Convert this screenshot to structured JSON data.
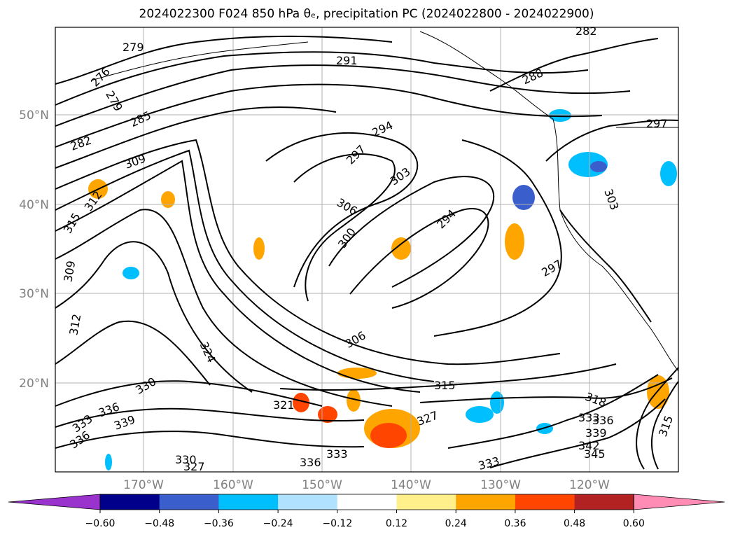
{
  "figure": {
    "title": "2024022300 F024 850 hPa θₑ, precipitation PC (2024022800 - 2024022900)"
  },
  "map": {
    "lat_labels": [
      "50°N",
      "40°N",
      "30°N",
      "20°N"
    ],
    "lon_labels": [
      "170°W",
      "160°W",
      "150°W",
      "140°W",
      "130°W",
      "120°W"
    ],
    "gridlines": true,
    "extent": {
      "lon": [
        -180,
        -110
      ],
      "lat": [
        10,
        60
      ]
    },
    "contour_labels": [
      "279",
      "276",
      "279",
      "285",
      "282",
      "309",
      "312",
      "315",
      "309",
      "312",
      "291",
      "288",
      "282",
      "297",
      "294",
      "297",
      "303",
      "306",
      "300",
      "294",
      "297",
      "303",
      "306",
      "324",
      "330",
      "336",
      "333",
      "336",
      "339",
      "315",
      "321",
      "327",
      "333",
      "336",
      "330",
      "327",
      "333",
      "318",
      "333",
      "336",
      "339",
      "342",
      "345",
      "315"
    ]
  },
  "colorbar": {
    "ticks": [
      "−0.60",
      "−0.48",
      "−0.36",
      "−0.24",
      "−0.12",
      "0.12",
      "0.24",
      "0.36",
      "0.48",
      "0.60"
    ],
    "colors": [
      "#9a32cd",
      "#00008b",
      "#3a5fcd",
      "#00bfff",
      "#b0e2ff",
      "#ffffff",
      "#fff08c",
      "#ffa500",
      "#ff4500",
      "#b22222",
      "#ff8cb4"
    ],
    "extend": "both"
  }
}
